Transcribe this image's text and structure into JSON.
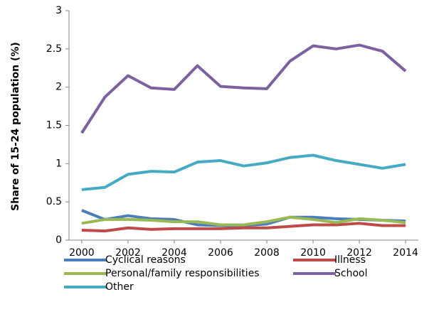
{
  "chart_data": {
    "type": "line",
    "x": [
      2000,
      2001,
      2002,
      2003,
      2004,
      2005,
      2006,
      2007,
      2008,
      2009,
      2010,
      2011,
      2012,
      2013,
      2014
    ],
    "series": [
      {
        "name": "Cyclical reasons",
        "color": "#4a7ebb",
        "values": [
          0.39,
          0.27,
          0.32,
          0.28,
          0.27,
          0.2,
          0.19,
          0.19,
          0.21,
          0.3,
          0.3,
          0.28,
          0.27,
          0.26,
          0.25
        ]
      },
      {
        "name": "Illness",
        "color": "#be4b48",
        "values": [
          0.13,
          0.12,
          0.16,
          0.14,
          0.15,
          0.15,
          0.15,
          0.16,
          0.16,
          0.18,
          0.2,
          0.2,
          0.22,
          0.19,
          0.19
        ]
      },
      {
        "name": "Personal/family responsibilities",
        "color": "#98b954",
        "values": [
          0.22,
          0.27,
          0.27,
          0.26,
          0.24,
          0.24,
          0.2,
          0.2,
          0.24,
          0.3,
          0.27,
          0.23,
          0.28,
          0.26,
          0.23
        ]
      },
      {
        "name": "School",
        "color": "#7d60a0",
        "values": [
          1.4,
          1.87,
          2.15,
          1.99,
          1.97,
          2.28,
          2.01,
          1.99,
          1.98,
          2.34,
          2.54,
          2.5,
          2.55,
          2.47,
          2.21
        ]
      },
      {
        "name": "Other",
        "color": "#46aac5",
        "values": [
          0.66,
          0.69,
          0.86,
          0.9,
          0.89,
          1.02,
          1.04,
          0.97,
          1.01,
          1.08,
          1.11,
          1.04,
          0.99,
          0.94,
          0.99
        ]
      }
    ],
    "y_label": "Share of 15-24 population (%)",
    "xlim": [
      1999.45,
      2014.55
    ],
    "xticks": [
      2000,
      2002,
      2004,
      2006,
      2008,
      2010,
      2012,
      2014
    ],
    "ylim": [
      0,
      3
    ],
    "yticks": [
      0,
      0.5,
      1,
      1.5,
      2,
      2.5,
      3
    ],
    "legend": "bottom"
  }
}
